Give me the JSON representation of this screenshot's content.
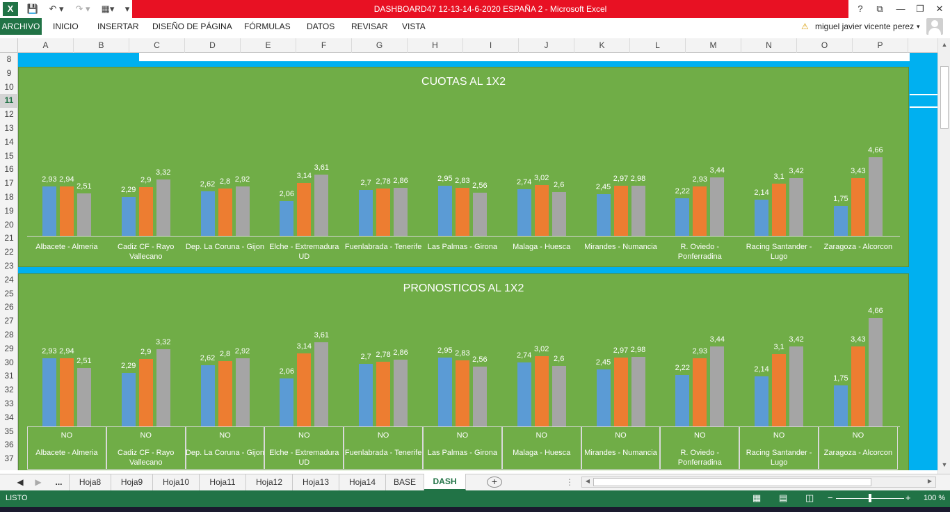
{
  "window": {
    "title": "DASHBOARD47 12-13-14-6-2020 ESPAÑA 2 -  Microsoft Excel",
    "help": "?",
    "restore": "⧉",
    "minimize": "—",
    "maximize": "❐",
    "close": "✕"
  },
  "ribbon": {
    "file": "ARCHIVO",
    "tabs": [
      "INICIO",
      "INSERTAR",
      "DISEÑO DE PÁGINA",
      "FÓRMULAS",
      "DATOS",
      "REVISAR",
      "VISTA"
    ],
    "user": "miguel javier vicente perez"
  },
  "columns": [
    "A",
    "B",
    "C",
    "D",
    "E",
    "F",
    "G",
    "H",
    "I",
    "J",
    "K",
    "L",
    "M",
    "N",
    "O",
    "P"
  ],
  "rows": [
    "8",
    "9",
    "10",
    "11",
    "12",
    "13",
    "14",
    "15",
    "16",
    "17",
    "18",
    "19",
    "20",
    "21",
    "22",
    "23",
    "24",
    "25",
    "26",
    "27",
    "28",
    "29",
    "30",
    "31",
    "32",
    "33",
    "34",
    "35",
    "36",
    "37"
  ],
  "chart_data": [
    {
      "type": "bar",
      "title": "CUOTAS AL 1X2",
      "categories": [
        "Albacete - Almeria",
        "Cadiz CF - Rayo Vallecano",
        "Dep. La Coruna - Gijon",
        "Elche - Extremadura UD",
        "Fuenlabrada - Tenerife",
        "Las Palmas - Girona",
        "Malaga - Huesca",
        "Mirandes - Numancia",
        "R. Oviedo - Ponferradina",
        "Racing Santander - Lugo",
        "Zaragoza - Alcorcon"
      ],
      "series": [
        {
          "values": [
            2.93,
            2.29,
            2.62,
            2.06,
            2.7,
            2.95,
            2.74,
            2.45,
            2.22,
            2.14,
            1.75
          ],
          "labels": [
            "2,93",
            "2,29",
            "2,62",
            "2,06",
            "2,7",
            "2,95",
            "2,74",
            "2,45",
            "2,22",
            "2,14",
            "1,75"
          ],
          "color": "#5b9bd5"
        },
        {
          "values": [
            2.94,
            2.9,
            2.8,
            3.14,
            2.78,
            2.83,
            3.02,
            2.97,
            2.93,
            3.1,
            3.43
          ],
          "labels": [
            "2,94",
            "2,9",
            "2,8",
            "3,14",
            "2,78",
            "2,83",
            "3,02",
            "2,97",
            "2,93",
            "3,1",
            "3,43"
          ],
          "color": "#ed7d31"
        },
        {
          "values": [
            2.51,
            3.32,
            2.92,
            3.61,
            2.86,
            2.56,
            2.6,
            2.98,
            3.44,
            3.42,
            4.66
          ],
          "labels": [
            "2,51",
            "3,32",
            "2,92",
            "3,61",
            "2,86",
            "2,56",
            "2,6",
            "2,98",
            "3,44",
            "3,42",
            "4,66"
          ],
          "color": "#a5a5a5"
        }
      ]
    },
    {
      "type": "bar",
      "title": "PRONOSTICOS AL 1X2",
      "categories": [
        "Albacete - Almeria",
        "Cadiz CF - Rayo Vallecano",
        "Dep. La Coruna - Gijon",
        "Elche - Extremadura UD",
        "Fuenlabrada - Tenerife",
        "Las Palmas - Girona",
        "Malaga - Huesca",
        "Mirandes - Numancia",
        "R. Oviedo - Ponferradina",
        "Racing Santander - Lugo",
        "Zaragoza - Alcorcon"
      ],
      "table_row": [
        "NO",
        "NO",
        "NO",
        "NO",
        "NO",
        "NO",
        "NO",
        "NO",
        "NO",
        "NO",
        "NO"
      ],
      "series": [
        {
          "values": [
            2.93,
            2.29,
            2.62,
            2.06,
            2.7,
            2.95,
            2.74,
            2.45,
            2.22,
            2.14,
            1.75
          ],
          "labels": [
            "2,93",
            "2,29",
            "2,62",
            "2,06",
            "2,7",
            "2,95",
            "2,74",
            "2,45",
            "2,22",
            "2,14",
            "1,75"
          ],
          "color": "#5b9bd5"
        },
        {
          "values": [
            2.94,
            2.9,
            2.8,
            3.14,
            2.78,
            2.83,
            3.02,
            2.97,
            2.93,
            3.1,
            3.43
          ],
          "labels": [
            "2,94",
            "2,9",
            "2,8",
            "3,14",
            "2,78",
            "2,83",
            "3,02",
            "2,97",
            "2,93",
            "3,1",
            "3,43"
          ],
          "color": "#ed7d31"
        },
        {
          "values": [
            2.51,
            3.32,
            2.92,
            3.61,
            2.86,
            2.56,
            2.6,
            2.98,
            3.44,
            3.42,
            4.66
          ],
          "labels": [
            "2,51",
            "3,32",
            "2,92",
            "3,61",
            "2,86",
            "2,56",
            "2,6",
            "2,98",
            "3,44",
            "3,42",
            "4,66"
          ],
          "color": "#a5a5a5"
        }
      ]
    }
  ],
  "sheet_tabs": {
    "ellipsis": "...",
    "tabs": [
      "Hoja8",
      "Hoja9",
      "Hoja10",
      "Hoja11",
      "Hoja12",
      "Hoja13",
      "Hoja14",
      "BASE",
      "DASH"
    ],
    "active": "DASH",
    "add": "+"
  },
  "status": {
    "mode": "LISTO",
    "zoom": "100 %",
    "zoom_fraction": 0.5
  }
}
